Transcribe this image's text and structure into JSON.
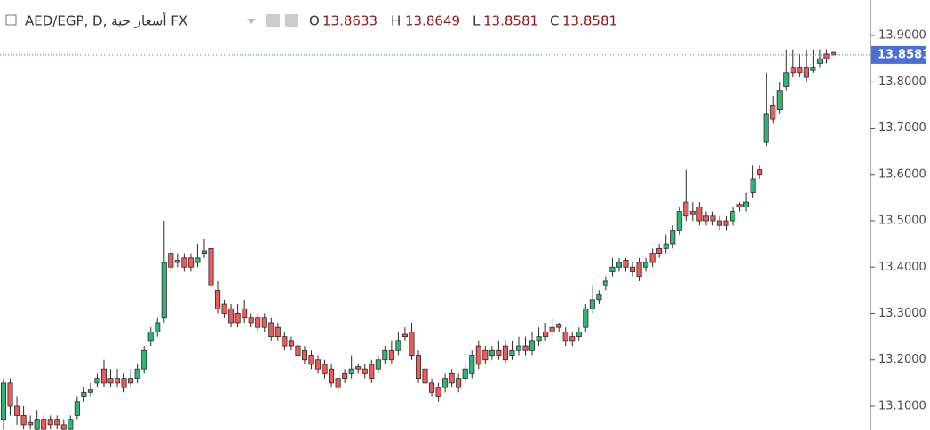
{
  "chart_data": {
    "type": "candlestick",
    "title": "AED/EGP, D, أسعار حية FX",
    "ohlc_letters": [
      "O",
      "H",
      "L",
      "C"
    ],
    "up_color": "#2fb574",
    "down_color": "#ef5a5a",
    "outline_color": "#2b2b2b",
    "last_line_color": "#4a6fd6",
    "ylim": [
      13.0483,
      13.9766
    ],
    "yticks": [
      {
        "value": 13.1,
        "label": "13.1000"
      },
      {
        "value": 13.2,
        "label": "13.2000"
      },
      {
        "value": 13.3,
        "label": "13.3000"
      },
      {
        "value": 13.4,
        "label": "13.4000"
      },
      {
        "value": 13.5,
        "label": "13.5000"
      },
      {
        "value": 13.6,
        "label": "13.6000"
      },
      {
        "value": 13.7,
        "label": "13.7000"
      },
      {
        "value": 13.8,
        "label": "13.8000"
      },
      {
        "value": 13.9,
        "label": "13.9000"
      }
    ],
    "candles": [
      [
        13.07,
        13.16,
        13.05,
        13.15
      ],
      [
        13.15,
        13.16,
        13.08,
        13.1
      ],
      [
        13.1,
        13.12,
        13.06,
        13.08
      ],
      [
        13.08,
        13.1,
        13.05,
        13.06
      ],
      [
        13.065,
        13.08,
        13.05,
        13.06
      ],
      [
        13.05,
        13.09,
        13.04,
        13.07
      ],
      [
        13.07,
        13.08,
        13.04,
        13.05
      ],
      [
        13.07,
        13.08,
        13.05,
        13.06
      ],
      [
        13.07,
        13.08,
        13.05,
        13.06
      ],
      [
        13.06,
        13.07,
        13.04,
        13.05
      ],
      [
        13.05,
        13.08,
        13.04,
        13.07
      ],
      [
        13.08,
        13.12,
        13.07,
        13.11
      ],
      [
        13.12,
        13.14,
        13.11,
        13.13
      ],
      [
        13.13,
        13.15,
        13.12,
        13.135
      ],
      [
        13.15,
        13.17,
        13.14,
        13.16
      ],
      [
        13.18,
        13.2,
        13.14,
        13.15
      ],
      [
        13.16,
        13.18,
        13.14,
        13.15
      ],
      [
        13.16,
        13.18,
        13.14,
        13.15
      ],
      [
        13.16,
        13.17,
        13.13,
        13.14
      ],
      [
        13.16,
        13.18,
        13.14,
        13.15
      ],
      [
        13.16,
        13.19,
        13.15,
        13.18
      ],
      [
        13.18,
        13.23,
        13.17,
        13.22
      ],
      [
        13.24,
        13.27,
        13.23,
        13.26
      ],
      [
        13.26,
        13.29,
        13.25,
        13.28
      ],
      [
        13.29,
        13.5,
        13.28,
        13.41
      ],
      [
        13.43,
        13.44,
        13.39,
        13.4
      ],
      [
        13.41,
        13.43,
        13.4,
        13.415
      ],
      [
        13.42,
        13.43,
        13.39,
        13.4
      ],
      [
        13.42,
        13.43,
        13.39,
        13.4
      ],
      [
        13.41,
        13.45,
        13.4,
        13.42
      ],
      [
        13.43,
        13.46,
        13.42,
        13.435
      ],
      [
        13.44,
        13.48,
        13.34,
        13.36
      ],
      [
        13.35,
        13.37,
        13.3,
        13.31
      ],
      [
        13.32,
        13.33,
        13.29,
        13.3
      ],
      [
        13.31,
        13.32,
        13.27,
        13.28
      ],
      [
        13.3,
        13.32,
        13.27,
        13.28
      ],
      [
        13.31,
        13.33,
        13.28,
        13.29
      ],
      [
        13.29,
        13.3,
        13.27,
        13.28
      ],
      [
        13.29,
        13.3,
        13.26,
        13.27
      ],
      [
        13.29,
        13.3,
        13.26,
        13.27
      ],
      [
        13.28,
        13.29,
        13.24,
        13.25
      ],
      [
        13.27,
        13.28,
        13.24,
        13.25
      ],
      [
        13.25,
        13.26,
        13.22,
        13.23
      ],
      [
        13.24,
        13.25,
        13.22,
        13.23
      ],
      [
        13.23,
        13.24,
        13.2,
        13.21
      ],
      [
        13.22,
        13.23,
        13.19,
        13.2
      ],
      [
        13.21,
        13.22,
        13.18,
        13.19
      ],
      [
        13.2,
        13.21,
        13.17,
        13.18
      ],
      [
        13.19,
        13.2,
        13.16,
        13.17
      ],
      [
        13.18,
        13.19,
        13.14,
        13.15
      ],
      [
        13.16,
        13.17,
        13.13,
        13.14
      ],
      [
        13.17,
        13.18,
        13.15,
        13.16
      ],
      [
        13.17,
        13.21,
        13.16,
        13.18
      ],
      [
        13.185,
        13.19,
        13.17,
        13.18
      ],
      [
        13.18,
        13.19,
        13.16,
        13.17
      ],
      [
        13.19,
        13.2,
        13.15,
        13.16
      ],
      [
        13.18,
        13.21,
        13.17,
        13.2
      ],
      [
        13.2,
        13.23,
        13.19,
        13.22
      ],
      [
        13.22,
        13.24,
        13.19,
        13.2
      ],
      [
        13.22,
        13.26,
        13.21,
        13.24
      ],
      [
        13.255,
        13.27,
        13.24,
        13.25
      ],
      [
        13.26,
        13.28,
        13.2,
        13.21
      ],
      [
        13.21,
        13.22,
        13.15,
        13.16
      ],
      [
        13.18,
        13.19,
        13.14,
        13.15
      ],
      [
        13.15,
        13.16,
        13.12,
        13.13
      ],
      [
        13.14,
        13.15,
        13.11,
        13.12
      ],
      [
        13.14,
        13.17,
        13.13,
        13.16
      ],
      [
        13.17,
        13.18,
        13.14,
        13.15
      ],
      [
        13.16,
        13.17,
        13.13,
        13.14
      ],
      [
        13.16,
        13.19,
        13.15,
        13.18
      ],
      [
        13.17,
        13.22,
        13.16,
        13.21
      ],
      [
        13.23,
        13.24,
        13.18,
        13.19
      ],
      [
        13.22,
        13.23,
        13.19,
        13.2
      ],
      [
        13.21,
        13.23,
        13.2,
        13.22
      ],
      [
        13.22,
        13.24,
        13.2,
        13.21
      ],
      [
        13.23,
        13.24,
        13.19,
        13.2
      ],
      [
        13.21,
        13.24,
        13.2,
        13.22
      ],
      [
        13.22,
        13.25,
        13.21,
        13.23
      ],
      [
        13.23,
        13.25,
        13.21,
        13.22
      ],
      [
        13.22,
        13.26,
        13.21,
        13.24
      ],
      [
        13.24,
        13.27,
        13.23,
        13.25
      ],
      [
        13.26,
        13.28,
        13.24,
        13.25
      ],
      [
        13.27,
        13.29,
        13.25,
        13.26
      ],
      [
        13.275,
        13.28,
        13.26,
        13.27
      ],
      [
        13.26,
        13.27,
        13.23,
        13.24
      ],
      [
        13.25,
        13.26,
        13.23,
        13.24
      ],
      [
        13.25,
        13.27,
        13.24,
        13.26
      ],
      [
        13.27,
        13.32,
        13.26,
        13.31
      ],
      [
        13.31,
        13.36,
        13.3,
        13.33
      ],
      [
        13.33,
        13.35,
        13.32,
        13.34
      ],
      [
        13.36,
        13.38,
        13.35,
        13.37
      ],
      [
        13.39,
        13.42,
        13.38,
        13.4
      ],
      [
        13.4,
        13.42,
        13.39,
        13.41
      ],
      [
        13.415,
        13.42,
        13.39,
        13.4
      ],
      [
        13.4,
        13.41,
        13.38,
        13.39
      ],
      [
        13.41,
        13.42,
        13.37,
        13.38
      ],
      [
        13.4,
        13.42,
        13.39,
        13.41
      ],
      [
        13.43,
        13.44,
        13.4,
        13.41
      ],
      [
        13.44,
        13.45,
        13.42,
        13.43
      ],
      [
        13.44,
        13.47,
        13.43,
        13.45
      ],
      [
        13.45,
        13.49,
        13.44,
        13.48
      ],
      [
        13.48,
        13.53,
        13.47,
        13.52
      ],
      [
        13.54,
        13.61,
        13.5,
        13.51
      ],
      [
        13.52,
        13.54,
        13.5,
        13.515
      ],
      [
        13.53,
        13.54,
        13.49,
        13.5
      ],
      [
        13.51,
        13.52,
        13.49,
        13.5
      ],
      [
        13.51,
        13.52,
        13.49,
        13.5
      ],
      [
        13.5,
        13.51,
        13.48,
        13.49
      ],
      [
        13.5,
        13.51,
        13.48,
        13.49
      ],
      [
        13.5,
        13.53,
        13.49,
        13.52
      ],
      [
        13.535,
        13.54,
        13.52,
        13.53
      ],
      [
        13.53,
        13.56,
        13.52,
        13.54
      ],
      [
        13.56,
        13.62,
        13.55,
        13.59
      ],
      [
        13.61,
        13.62,
        13.59,
        13.6
      ],
      [
        13.67,
        13.82,
        13.66,
        13.73
      ],
      [
        13.75,
        13.77,
        13.71,
        13.72
      ],
      [
        13.74,
        13.8,
        13.73,
        13.78
      ],
      [
        13.79,
        13.87,
        13.78,
        13.82
      ],
      [
        13.83,
        13.87,
        13.81,
        13.82
      ],
      [
        13.83,
        13.86,
        13.81,
        13.82
      ],
      [
        13.83,
        13.87,
        13.8,
        13.81
      ],
      [
        13.825,
        13.87,
        13.82,
        13.83
      ],
      [
        13.84,
        13.87,
        13.83,
        13.85
      ],
      [
        13.86,
        13.87,
        13.84,
        13.85
      ],
      [
        13.8633,
        13.8649,
        13.8581,
        13.8581
      ]
    ]
  }
}
